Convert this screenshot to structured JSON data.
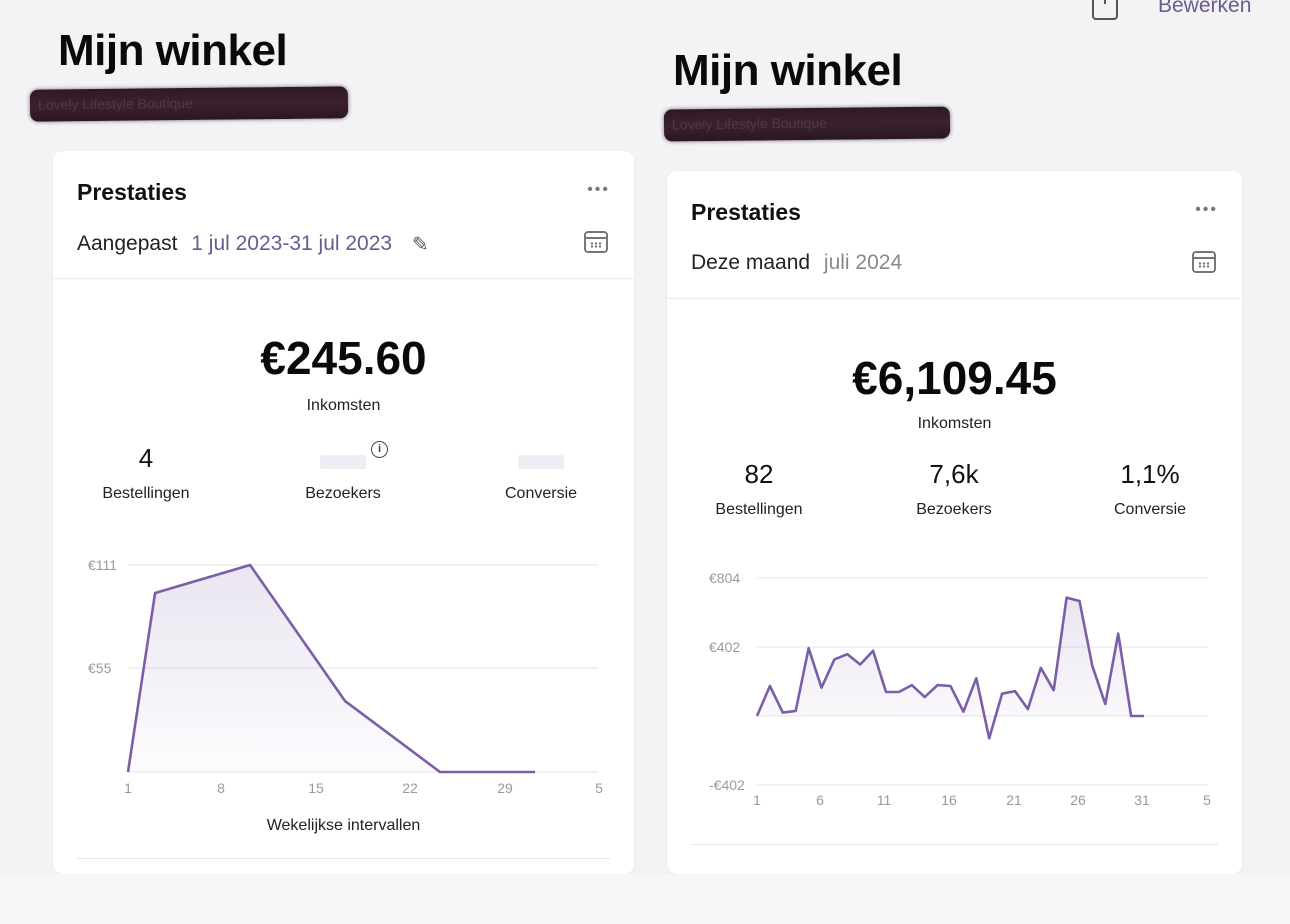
{
  "header": {
    "edit_label": "Bewerken"
  },
  "left": {
    "shop_title": "Mijn winkel",
    "shop_subtitle_redacted": "Lovely Lifestyle Boutique",
    "card_title": "Prestaties",
    "period_label": "Aangepast",
    "period_value": "1 jul 2023-31 jul 2023",
    "revenue": "€245.60",
    "revenue_label": "Inkomsten",
    "kpis": [
      {
        "value": "4",
        "label": "Bestellingen"
      },
      {
        "value": "",
        "label": "Bezoekers"
      },
      {
        "value": "",
        "label": "Conversie"
      }
    ],
    "x_caption": "Wekelijkse intervallen",
    "chart_data": {
      "type": "area",
      "x": [
        1,
        3,
        10,
        17,
        24,
        31
      ],
      "values": [
        0,
        96,
        111,
        38,
        0,
        0
      ],
      "x_ticks": [
        "1",
        "8",
        "15",
        "22",
        "29",
        "5"
      ],
      "y_ticks": [
        "€111",
        "€55"
      ],
      "ylim": [
        0,
        111
      ],
      "xlabel": "Wekelijkse intervallen",
      "color": "#7b5ea7"
    }
  },
  "right": {
    "shop_title": "Mijn winkel",
    "shop_subtitle_redacted": "Lovely Lifestyle Boutique",
    "card_title": "Prestaties",
    "period_label": "Deze maand",
    "period_value": "juli 2024",
    "revenue": "€6,109.45",
    "revenue_label": "Inkomsten",
    "kpis": [
      {
        "value": "82",
        "label": "Bestellingen"
      },
      {
        "value": "7,6k",
        "label": "Bezoekers"
      },
      {
        "value": "1,1%",
        "label": "Conversie"
      }
    ],
    "chart_data": {
      "type": "area",
      "x": [
        1,
        2,
        3,
        4,
        5,
        6,
        7,
        8,
        9,
        10,
        11,
        12,
        13,
        14,
        15,
        16,
        17,
        18,
        19,
        20,
        21,
        22,
        23,
        24,
        25,
        26,
        27,
        28,
        29,
        30,
        31
      ],
      "values": [
        0,
        175,
        20,
        30,
        395,
        165,
        330,
        360,
        300,
        380,
        140,
        140,
        180,
        110,
        180,
        175,
        25,
        220,
        -130,
        130,
        145,
        40,
        280,
        150,
        690,
        670,
        290,
        70,
        480,
        0,
        0
      ],
      "x_ticks": [
        "1",
        "6",
        "11",
        "16",
        "21",
        "26",
        "31",
        "5"
      ],
      "y_ticks": [
        "€804",
        "€402",
        "-€402"
      ],
      "ylim": [
        -402,
        804
      ],
      "color": "#7b5ea7"
    }
  }
}
